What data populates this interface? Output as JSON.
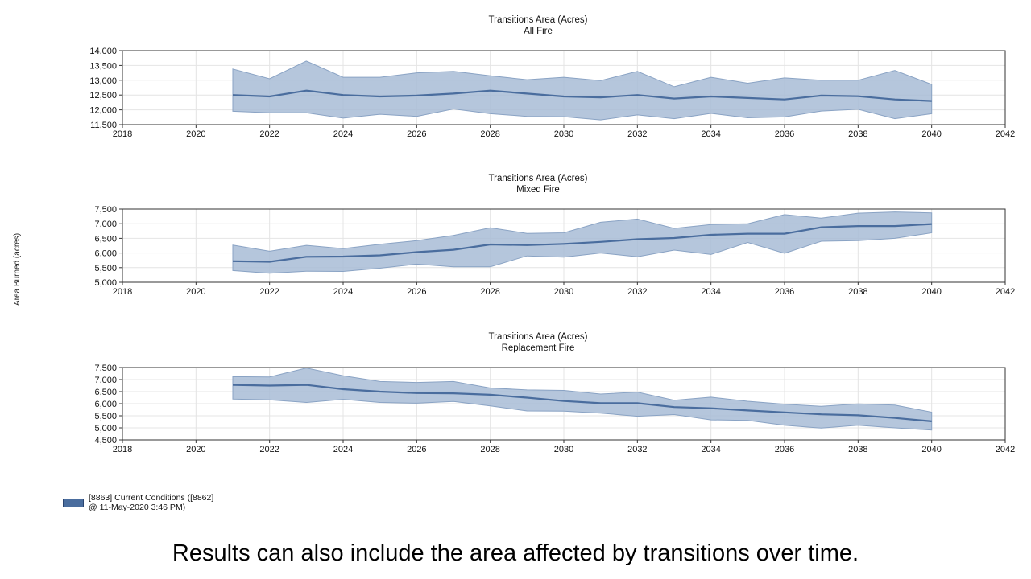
{
  "y_axis_label": "Area Burned (acres)",
  "legend": {
    "label": "[8863] Current Conditions ([8862] @ 11-May-2020 3:46 PM)",
    "color": "#4a6d9e"
  },
  "caption": "Results can also include the area affected by transitions over time.",
  "colors": {
    "line": "#4a6d9e",
    "band": "#a8bcd6",
    "band_edge": "#8aa3c4"
  },
  "chart_data": [
    {
      "type": "area",
      "title": "Transitions Area (Acres)",
      "subtitle": "All Fire",
      "xlim": [
        2018,
        2042
      ],
      "xticks": [
        "2018",
        "2020",
        "2022",
        "2024",
        "2026",
        "2028",
        "2030",
        "2032",
        "2034",
        "2036",
        "2038",
        "2040",
        "2042"
      ],
      "ylim": [
        11500,
        14000
      ],
      "yticks": [
        "11,500",
        "12,000",
        "12,500",
        "13,000",
        "13,500",
        "14,000"
      ],
      "ytick_values": [
        11500,
        12000,
        12500,
        13000,
        13500,
        14000
      ],
      "grid": true,
      "x": [
        2021,
        2022,
        2023,
        2024,
        2025,
        2026,
        2027,
        2028,
        2029,
        2030,
        2031,
        2032,
        2033,
        2034,
        2035,
        2036,
        2037,
        2038,
        2039,
        2040
      ],
      "series": [
        {
          "mean": [
            12500,
            12450,
            12650,
            12500,
            12450,
            12480,
            12550,
            12650,
            12550,
            12450,
            12420,
            12500,
            12380,
            12450,
            12400,
            12350,
            12480,
            12460,
            12350,
            12300
          ],
          "upper": [
            13380,
            13050,
            13650,
            13100,
            13100,
            13250,
            13300,
            13150,
            13020,
            13100,
            12990,
            13300,
            12780,
            13100,
            12900,
            13080,
            13000,
            13000,
            13330,
            12860
          ],
          "lower": [
            11950,
            11900,
            11900,
            11720,
            11850,
            11780,
            12030,
            11870,
            11780,
            11770,
            11660,
            11830,
            11700,
            11880,
            11730,
            11760,
            11960,
            12020,
            11700,
            11870
          ]
        }
      ]
    },
    {
      "type": "area",
      "title": "Transitions Area (Acres)",
      "subtitle": "Mixed Fire",
      "xlim": [
        2018,
        2042
      ],
      "xticks": [
        "2018",
        "2020",
        "2022",
        "2024",
        "2026",
        "2028",
        "2030",
        "2032",
        "2034",
        "2036",
        "2038",
        "2040",
        "2042"
      ],
      "ylim": [
        5000,
        7500
      ],
      "yticks": [
        "5,000",
        "5,500",
        "6,000",
        "6,500",
        "7,000",
        "7,500"
      ],
      "ytick_values": [
        5000,
        5500,
        6000,
        6500,
        7000,
        7500
      ],
      "grid": true,
      "x": [
        2021,
        2022,
        2023,
        2024,
        2025,
        2026,
        2027,
        2028,
        2029,
        2030,
        2031,
        2032,
        2033,
        2034,
        2035,
        2036,
        2037,
        2038,
        2039,
        2040
      ],
      "series": [
        {
          "mean": [
            5720,
            5700,
            5870,
            5880,
            5920,
            6030,
            6110,
            6290,
            6270,
            6310,
            6380,
            6470,
            6510,
            6620,
            6660,
            6660,
            6880,
            6920,
            6920,
            6990
          ],
          "upper": [
            6270,
            6060,
            6260,
            6150,
            6300,
            6420,
            6600,
            6860,
            6670,
            6690,
            7050,
            7160,
            6840,
            6970,
            7000,
            7310,
            7190,
            7360,
            7400,
            7370
          ],
          "lower": [
            5400,
            5310,
            5380,
            5370,
            5480,
            5620,
            5530,
            5530,
            5900,
            5860,
            6000,
            5870,
            6100,
            5950,
            6360,
            5990,
            6400,
            6420,
            6500,
            6690
          ]
        }
      ]
    },
    {
      "type": "area",
      "title": "Transitions Area (Acres)",
      "subtitle": "Replacement Fire",
      "xlim": [
        2018,
        2042
      ],
      "xticks": [
        "2018",
        "2020",
        "2022",
        "2024",
        "2026",
        "2028",
        "2030",
        "2032",
        "2034",
        "2036",
        "2038",
        "2040",
        "2042"
      ],
      "ylim": [
        4500,
        7500
      ],
      "yticks": [
        "4,500",
        "5,000",
        "5,500",
        "6,000",
        "6,500",
        "7,000",
        "7,500"
      ],
      "ytick_values": [
        4500,
        5000,
        5500,
        6000,
        6500,
        7000,
        7500
      ],
      "grid": true,
      "x": [
        2021,
        2022,
        2023,
        2024,
        2025,
        2026,
        2027,
        2028,
        2029,
        2030,
        2031,
        2032,
        2033,
        2034,
        2035,
        2036,
        2037,
        2038,
        2039,
        2040
      ],
      "series": [
        {
          "mean": [
            6780,
            6750,
            6780,
            6600,
            6500,
            6440,
            6430,
            6370,
            6250,
            6110,
            6020,
            6020,
            5860,
            5810,
            5720,
            5640,
            5560,
            5520,
            5410,
            5270
          ],
          "upper": [
            7120,
            7110,
            7480,
            7160,
            6920,
            6880,
            6920,
            6650,
            6570,
            6550,
            6400,
            6480,
            6140,
            6270,
            6100,
            5980,
            5890,
            5990,
            5940,
            5650
          ],
          "lower": [
            6190,
            6160,
            6050,
            6180,
            6050,
            6020,
            6090,
            5910,
            5700,
            5690,
            5610,
            5480,
            5550,
            5330,
            5310,
            5110,
            4990,
            5110,
            5000,
            4910
          ]
        }
      ]
    }
  ]
}
